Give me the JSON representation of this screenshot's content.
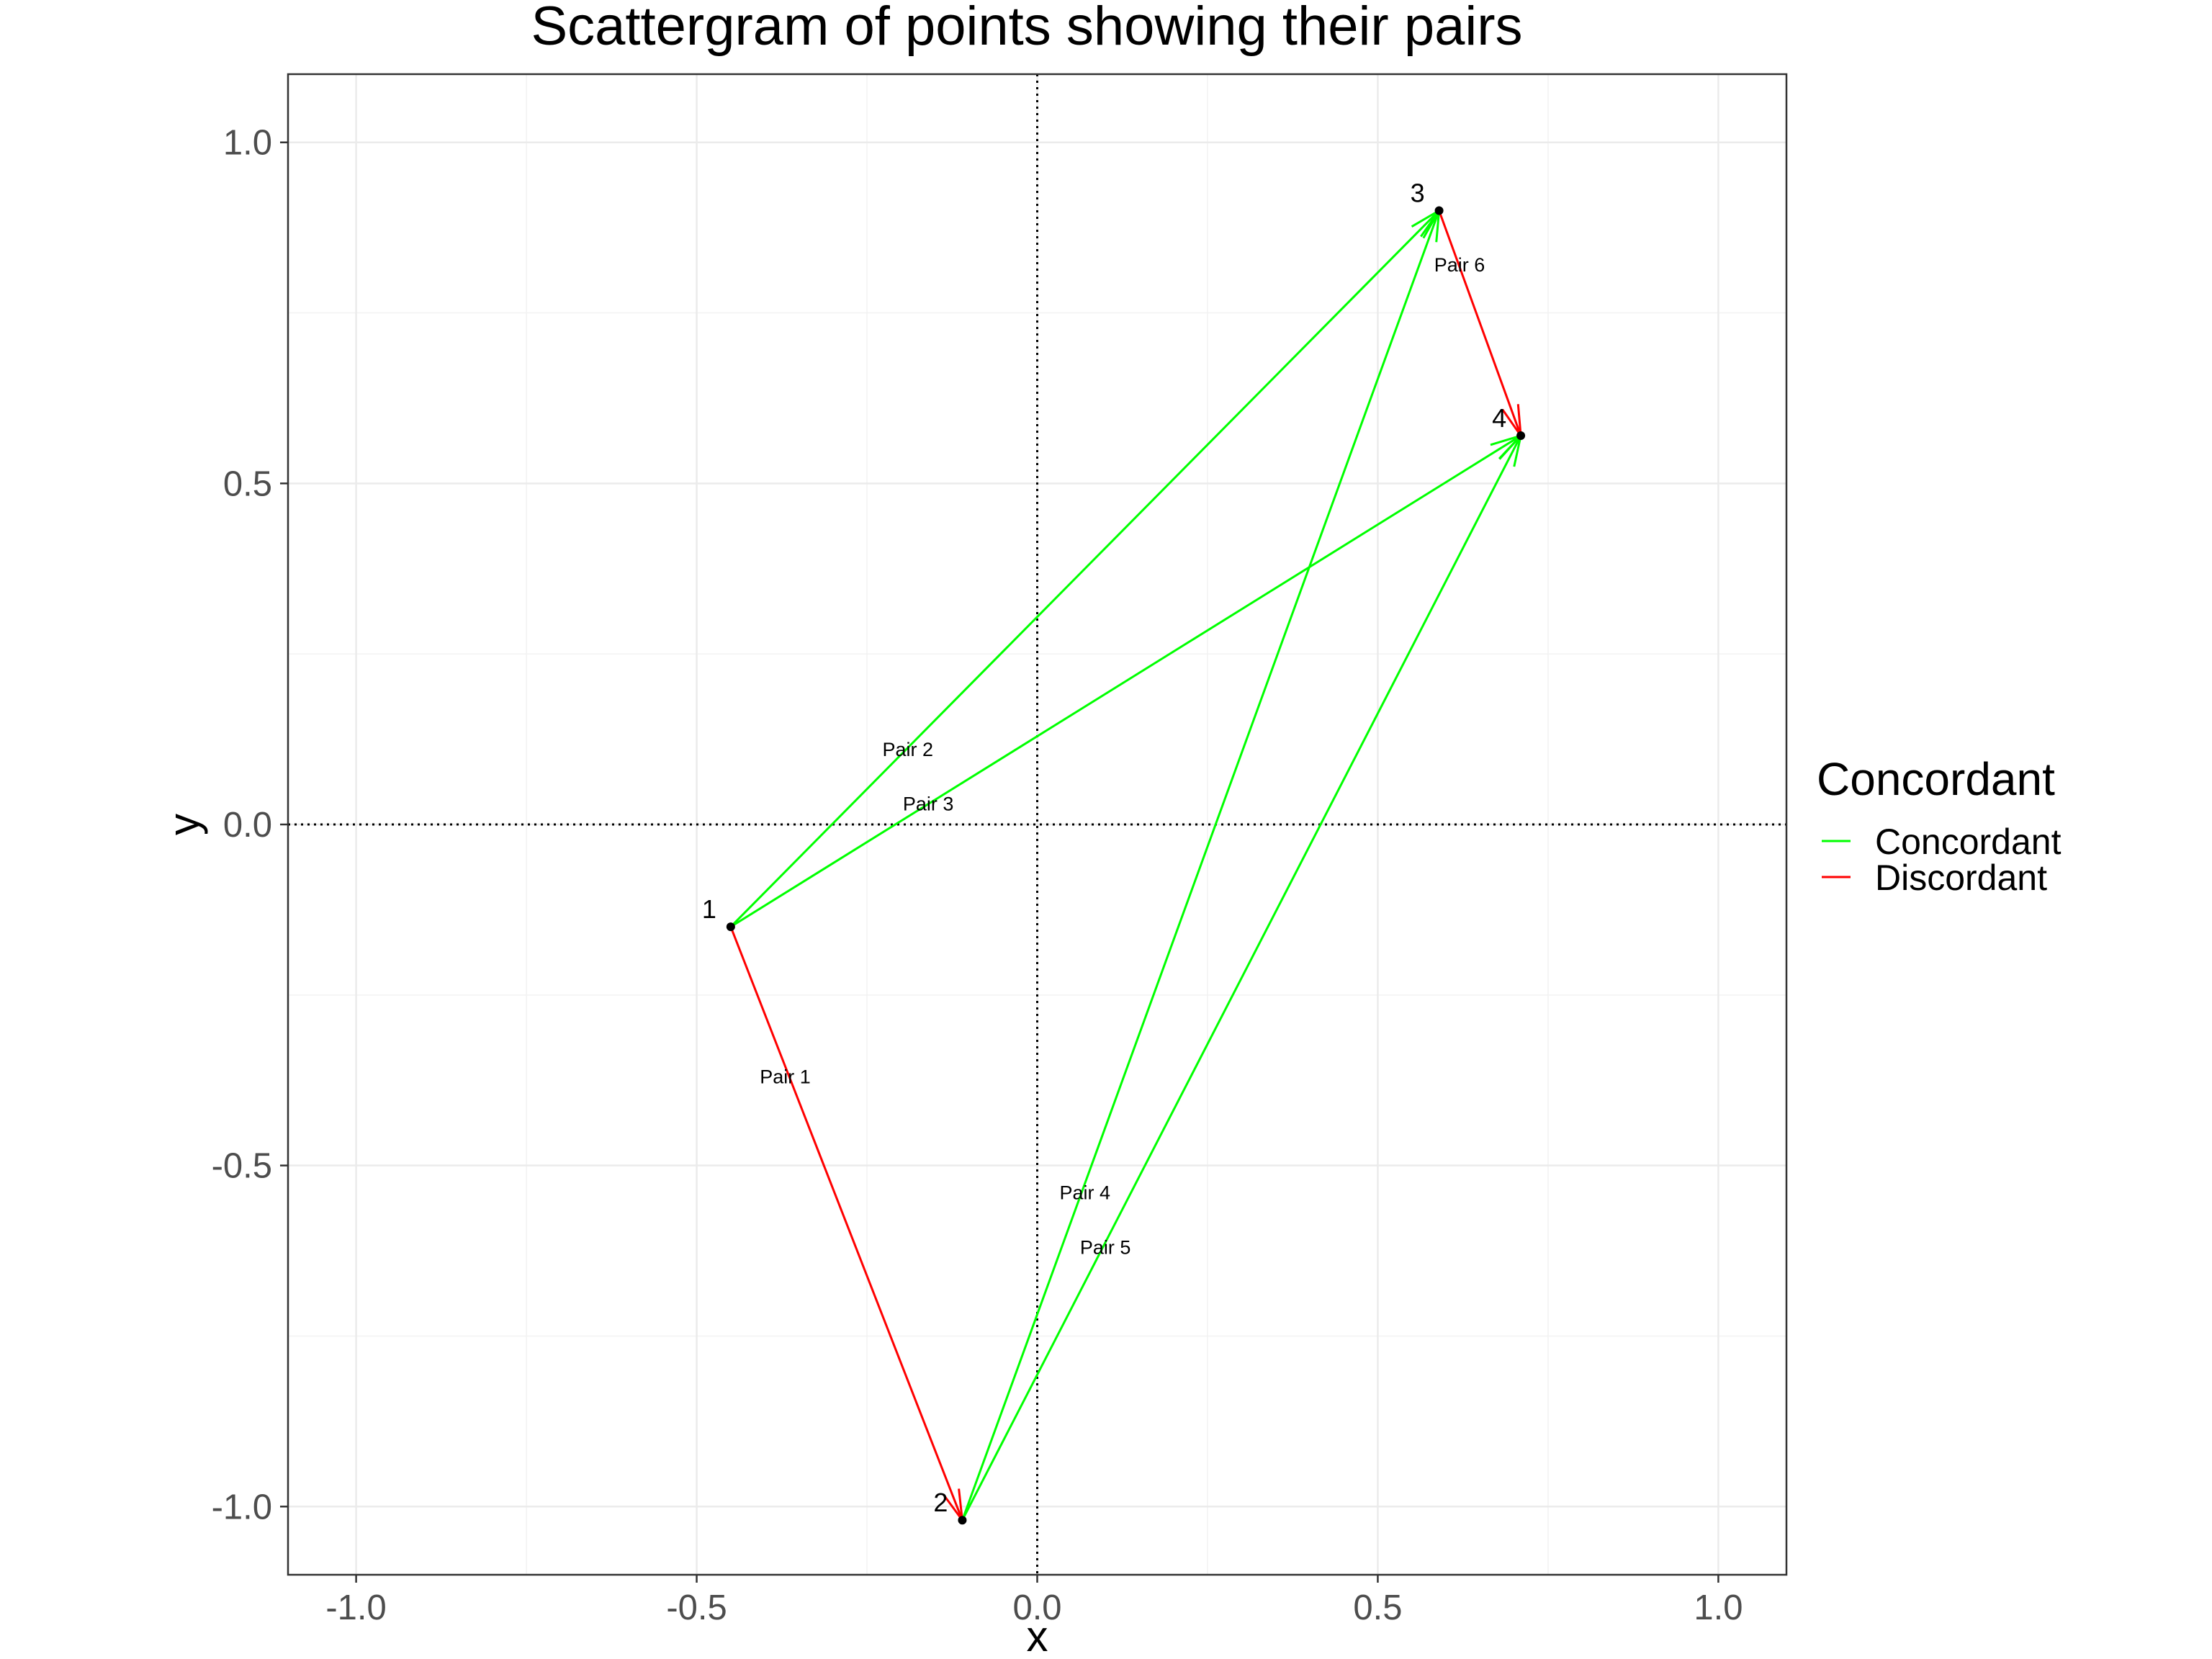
{
  "chart_data": {
    "type": "scatter",
    "title": "Scattergram of points showing their pairs",
    "xlabel": "x",
    "ylabel": "y",
    "xlim": [
      -1.1,
      1.1
    ],
    "ylim": [
      -1.1,
      1.1
    ],
    "x_ticks": [
      -1.0,
      -0.5,
      0.0,
      0.5,
      1.0
    ],
    "y_ticks": [
      -1.0,
      -0.5,
      0.0,
      0.5,
      1.0
    ],
    "x_tick_labels": [
      "-1.0",
      "-0.5",
      "0.0",
      "0.5",
      "1.0"
    ],
    "y_tick_labels": [
      "-1.0",
      "-0.5",
      "0.0",
      "0.5",
      "1.0"
    ],
    "grid": true,
    "reference_lines": {
      "x": 0,
      "y": 0,
      "style": "dotted"
    },
    "points": [
      {
        "label": "1",
        "x": -0.45,
        "y": -0.15
      },
      {
        "label": "2",
        "x": -0.11,
        "y": -1.02
      },
      {
        "label": "3",
        "x": 0.59,
        "y": 0.9
      },
      {
        "label": "4",
        "x": 0.71,
        "y": 0.57
      }
    ],
    "pairs": [
      {
        "label": "Pair 1",
        "from": 1,
        "to": 2,
        "type": "Discordant",
        "label_x": -0.37,
        "label_y": -0.37
      },
      {
        "label": "Pair 2",
        "from": 1,
        "to": 3,
        "type": "Concordant",
        "label_x": -0.19,
        "label_y": 0.11
      },
      {
        "label": "Pair 3",
        "from": 1,
        "to": 4,
        "type": "Concordant",
        "label_x": -0.16,
        "label_y": 0.03
      },
      {
        "label": "Pair 4",
        "from": 2,
        "to": 3,
        "type": "Concordant",
        "label_x": 0.07,
        "label_y": -0.54
      },
      {
        "label": "Pair 5",
        "from": 2,
        "to": 4,
        "type": "Concordant",
        "label_x": 0.1,
        "label_y": -0.62
      },
      {
        "label": "Pair 6",
        "from": 3,
        "to": 4,
        "type": "Discordant",
        "label_x": 0.62,
        "label_y": 0.82
      }
    ],
    "legend": {
      "title": "Concordant",
      "position": "right",
      "items": [
        {
          "label": "Concordant",
          "color": "#00ff00"
        },
        {
          "label": "Discordant",
          "color": "#ff0000"
        }
      ]
    }
  }
}
